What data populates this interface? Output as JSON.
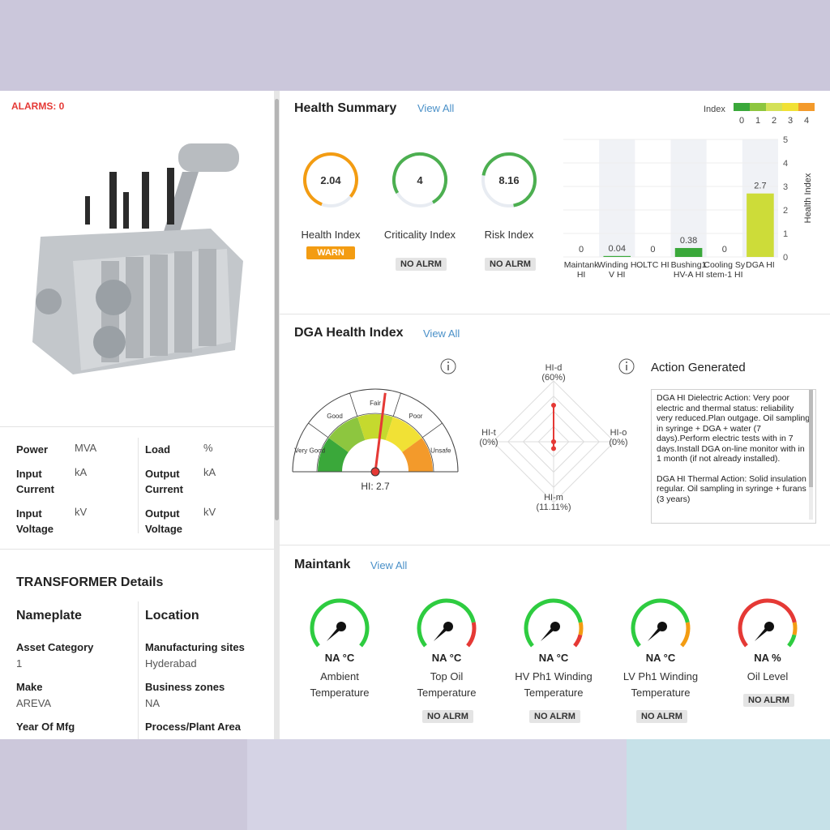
{
  "alarms": "ALARMS: 0",
  "ratings": [
    {
      "label": "Power",
      "unit": "MVA"
    },
    {
      "label": "Load",
      "unit": "%"
    },
    {
      "label": "Input Current",
      "unit": "kA"
    },
    {
      "label": "Output Current",
      "unit": "kA"
    },
    {
      "label": "Input Voltage",
      "unit": "kV"
    },
    {
      "label": "Output Voltage",
      "unit": "kV"
    }
  ],
  "details": {
    "title": "TRANSFORMER Details",
    "nameplate": {
      "heading": "Nameplate",
      "fields": [
        {
          "label": "Asset Category",
          "value": "1"
        },
        {
          "label": "Make",
          "value": "AREVA"
        },
        {
          "label": "Year Of Mfg"
        }
      ]
    },
    "location": {
      "heading": "Location",
      "fields": [
        {
          "label": "Manufacturing sites",
          "value": "Hyderabad"
        },
        {
          "label": "Business zones",
          "value": "NA"
        },
        {
          "label": "Process/Plant Area"
        }
      ]
    }
  },
  "health_summary": {
    "title": "Health Summary",
    "view_all": "View All",
    "indices": [
      {
        "value": 2.04,
        "label": "Health Index",
        "status": "WARN",
        "color": "#f39c12"
      },
      {
        "value": 4,
        "label": "Criticality Index",
        "status": "NO ALRM",
        "color": "#4caf50"
      },
      {
        "value": 8.16,
        "label": "Risk Index",
        "status": "NO ALRM",
        "color": "#4caf50"
      }
    ],
    "legend": {
      "title": "Index",
      "colors": [
        "#3aa83a",
        "#8dc63f",
        "#d4e157",
        "#f1e135",
        "#f39a2b"
      ],
      "ticks": [
        0,
        1,
        2,
        3,
        4
      ]
    }
  },
  "chart_data": {
    "type": "bar",
    "categories": [
      "Maintank HI",
      "Winding HV HI",
      "OLTC HI",
      "Bushing1 HV-A HI",
      "Cooling System-1 HI",
      "DGA HI"
    ],
    "values": [
      0,
      0.04,
      0,
      0.38,
      0,
      2.7
    ],
    "colors": [
      "#3aa83a",
      "#3aa83a",
      "#3aa83a",
      "#3aa83a",
      "#3aa83a",
      "#cddc39"
    ],
    "ylim": [
      0,
      5
    ],
    "yticks": [
      0,
      1,
      2,
      3,
      4,
      5
    ],
    "y_label": "Health Index"
  },
  "dga": {
    "title": "DGA Health Index",
    "view_all": "View All",
    "gauge": {
      "zones": [
        "Very Good",
        "Good",
        "Fair",
        "Poor",
        "Unsafe"
      ],
      "colors": [
        "#3aa83a",
        "#8dc63f",
        "#c5d92e",
        "#f1e135",
        "#f39a2b"
      ],
      "lim": [
        0,
        5
      ],
      "value": 2.7,
      "value_label": "HI: 2.7"
    },
    "radar": {
      "lim": [
        0,
        100
      ],
      "axes": [
        {
          "name": "HI-d",
          "value": 60,
          "value_label": "(60%)"
        },
        {
          "name": "HI-o",
          "value": 0,
          "value_label": "(0%)"
        },
        {
          "name": "HI-m",
          "value": 11.11,
          "value_label": "(11.11%)"
        },
        {
          "name": "HI-t",
          "value": 0,
          "value_label": "(0%)"
        }
      ]
    },
    "action": {
      "title": "Action Generated",
      "paragraphs": [
        "DGA HI Dielectric Action: Very poor electric and thermal status: reliability very reduced.Plan outgage. Oil sampling in syringe + DGA + water (7 days).Perform electric tests with in 7 days.Install DGA on-line monitor with in 1 month (if not already installed).",
        "DGA HI Thermal Action: Solid insulation regular. Oil sampling in syringe + furans (3 years)"
      ]
    }
  },
  "maintank": {
    "title": "Maintank",
    "view_all": "View All",
    "gauges": [
      {
        "value": "NA °C",
        "label": "Ambient Temperature",
        "colors": [
          "#2ecc40"
        ]
      },
      {
        "value": "NA °C",
        "label": "Top Oil Temperature",
        "status": "NO ALRM",
        "colors": [
          "#2ecc40",
          "#e53935"
        ]
      },
      {
        "value": "NA °C",
        "label": "HV Ph1 Winding Temperature",
        "status": "NO ALRM",
        "colors": [
          "#2ecc40",
          "#f39c12",
          "#e53935"
        ]
      },
      {
        "value": "NA °C",
        "label": "LV Ph1 Winding Temperature",
        "status": "NO ALRM",
        "colors": [
          "#2ecc40",
          "#f39c12"
        ]
      },
      {
        "value": "NA %",
        "label": "Oil Level",
        "status": "NO ALRM",
        "colors": [
          "#e53935",
          "#f39c12",
          "#2ecc40"
        ]
      }
    ]
  }
}
